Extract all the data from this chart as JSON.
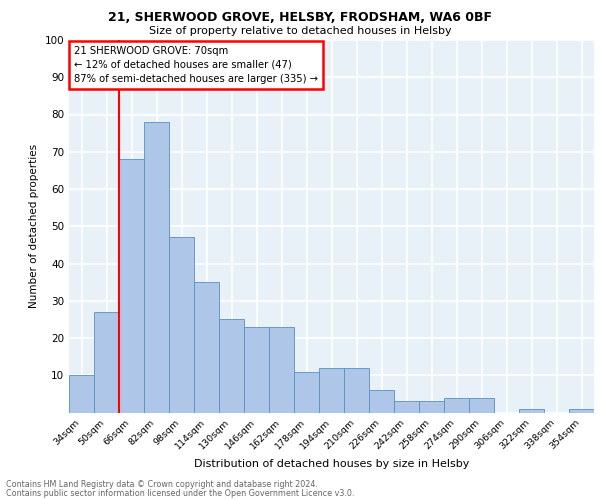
{
  "title1": "21, SHERWOOD GROVE, HELSBY, FRODSHAM, WA6 0BF",
  "title2": "Size of property relative to detached houses in Helsby",
  "xlabel": "Distribution of detached houses by size in Helsby",
  "ylabel": "Number of detached properties",
  "footnote1": "Contains HM Land Registry data © Crown copyright and database right 2024.",
  "footnote2": "Contains public sector information licensed under the Open Government Licence v3.0.",
  "categories": [
    "34sqm",
    "50sqm",
    "66sqm",
    "82sqm",
    "98sqm",
    "114sqm",
    "130sqm",
    "146sqm",
    "162sqm",
    "178sqm",
    "194sqm",
    "210sqm",
    "226sqm",
    "242sqm",
    "258sqm",
    "274sqm",
    "290sqm",
    "306sqm",
    "322sqm",
    "338sqm",
    "354sqm"
  ],
  "values": [
    10,
    27,
    68,
    78,
    47,
    35,
    25,
    23,
    23,
    11,
    12,
    12,
    6,
    3,
    3,
    4,
    4,
    0,
    1,
    0,
    1
  ],
  "bar_color": "#aec6e8",
  "bar_edge_color": "#5a8fc2",
  "background_color": "#e8f0f8",
  "grid_color": "#ffffff",
  "annotation_box_text": "21 SHERWOOD GROVE: 70sqm\n← 12% of detached houses are smaller (47)\n87% of semi-detached houses are larger (335) →",
  "ylim": [
    0,
    100
  ],
  "yticks": [
    0,
    10,
    20,
    30,
    40,
    50,
    60,
    70,
    80,
    90,
    100
  ],
  "red_line_x": 1.5
}
